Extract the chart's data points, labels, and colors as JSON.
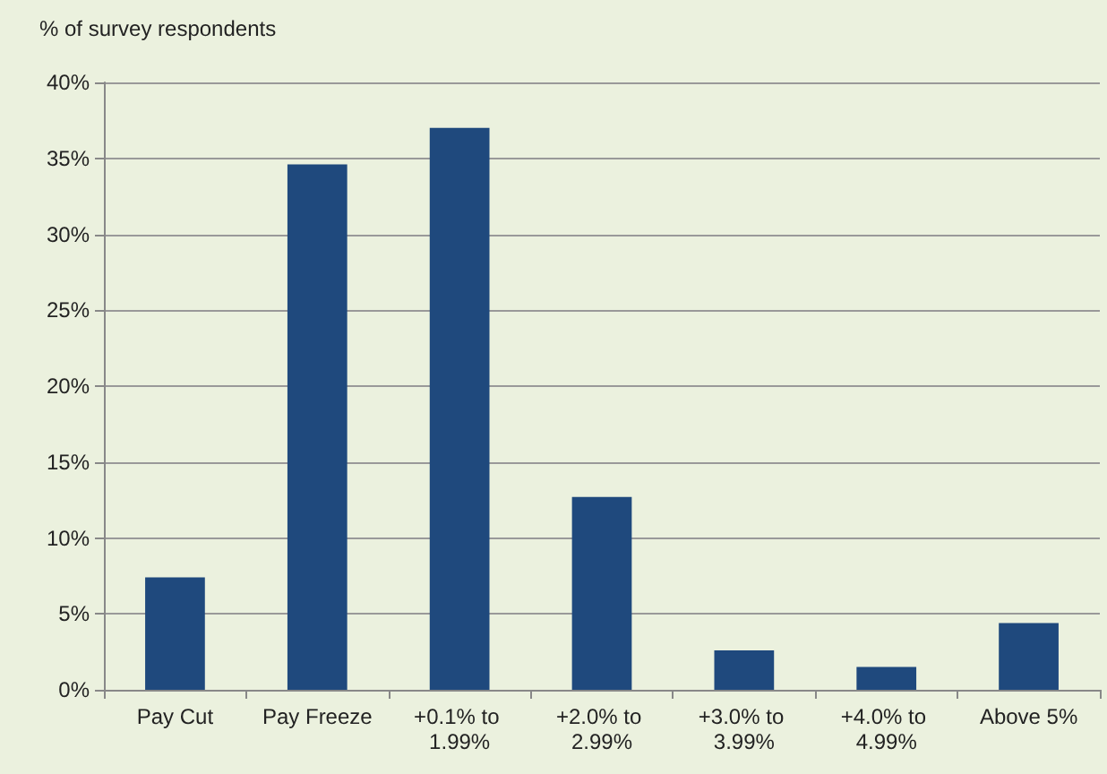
{
  "chart_data": {
    "type": "bar",
    "ylabel": "% of survey respondents",
    "categories": [
      "Pay Cut",
      "Pay Freeze",
      "+0.1% to 1.99%",
      "+2.0% to 2.99%",
      "+3.0% to 3.99%",
      "+4.0% to 4.99%",
      "Above 5%"
    ],
    "values": [
      7.4,
      34.6,
      37.0,
      12.7,
      2.6,
      1.5,
      4.4
    ],
    "color": "#1f497d",
    "ylim": [
      0,
      40
    ],
    "yticks": [
      {
        "value": 0,
        "label": "0%"
      },
      {
        "value": 5,
        "label": "5%"
      },
      {
        "value": 10,
        "label": "10%"
      },
      {
        "value": 15,
        "label": "15%"
      },
      {
        "value": 20,
        "label": "20%"
      },
      {
        "value": 25,
        "label": "25%"
      },
      {
        "value": 30,
        "label": "30%"
      },
      {
        "value": 35,
        "label": "35%"
      },
      {
        "value": 40,
        "label": "40%"
      }
    ],
    "grid": "y"
  }
}
